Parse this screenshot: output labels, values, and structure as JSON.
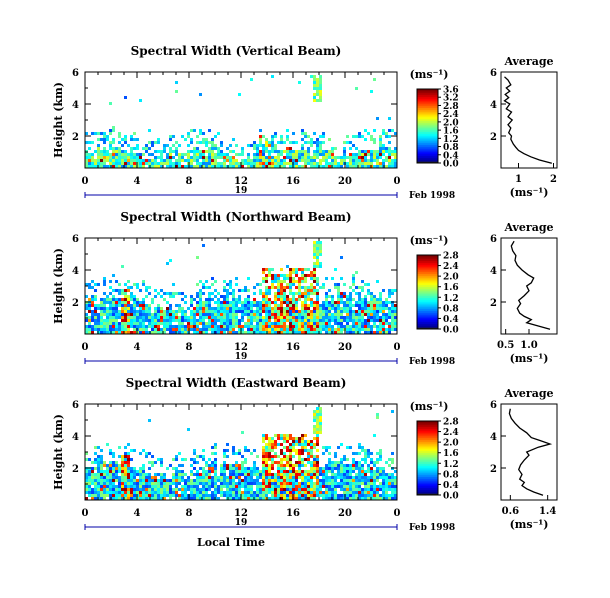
{
  "chart_data": [
    {
      "type": "heatmap",
      "title": "Spectral Width (Vertical Beam)",
      "ylabel": "Height (km)",
      "yticks": [
        "2",
        "4",
        "6"
      ],
      "ylim": [
        0,
        6
      ],
      "xticks": [
        "0",
        "4",
        "8",
        "12",
        "16",
        "20",
        "0"
      ],
      "xlim": [
        0,
        24
      ],
      "date_day": "19",
      "date_label": "Feb 1998",
      "colorbar": {
        "unit": "(ms⁻¹)",
        "ticks": [
          "0.0",
          "0.4",
          "0.8",
          "1.2",
          "1.6",
          "2.0",
          "2.4",
          "2.8",
          "3.2",
          "3.6"
        ]
      },
      "average": {
        "title": "Average",
        "xlabel": "(ms⁻¹)",
        "xticks": [
          "1",
          "2"
        ],
        "xlim": [
          0.5,
          2.1
        ],
        "yticks": [
          "2",
          "4",
          "6"
        ],
        "ylim": [
          0,
          6
        ],
        "profile": [
          [
            0.3,
            1.95
          ],
          [
            0.5,
            1.6
          ],
          [
            0.7,
            1.35
          ],
          [
            0.9,
            1.15
          ],
          [
            1.1,
            1.0
          ],
          [
            1.3,
            0.92
          ],
          [
            1.5,
            0.85
          ],
          [
            1.8,
            0.78
          ],
          [
            2.0,
            0.8
          ],
          [
            2.2,
            0.72
          ],
          [
            2.5,
            0.78
          ],
          [
            2.7,
            0.7
          ],
          [
            3.0,
            0.82
          ],
          [
            3.2,
            0.7
          ],
          [
            3.5,
            0.8
          ],
          [
            3.7,
            0.65
          ],
          [
            4.0,
            0.75
          ],
          [
            4.2,
            0.6
          ],
          [
            4.4,
            0.72
          ],
          [
            4.6,
            0.62
          ],
          [
            4.8,
            0.75
          ],
          [
            5.0,
            0.65
          ],
          [
            5.2,
            0.78
          ],
          [
            5.5,
            0.7
          ],
          [
            5.7,
            0.6
          ]
        ]
      }
    },
    {
      "type": "heatmap",
      "title": "Spectral Width (Northward Beam)",
      "ylabel": "Height (km)",
      "yticks": [
        "2",
        "4",
        "6"
      ],
      "ylim": [
        0,
        6
      ],
      "xticks": [
        "0",
        "4",
        "8",
        "12",
        "16",
        "20",
        "0"
      ],
      "xlim": [
        0,
        24
      ],
      "date_day": "19",
      "date_label": "Feb 1998",
      "colorbar": {
        "unit": "(ms⁻¹)",
        "ticks": [
          "0.0",
          "0.4",
          "0.8",
          "1.2",
          "1.6",
          "2.0",
          "2.4",
          "2.8"
        ]
      },
      "average": {
        "title": "Average",
        "xlabel": "(ms⁻¹)",
        "xticks": [
          "0.5",
          "1.0"
        ],
        "xlim": [
          0.4,
          1.6
        ],
        "yticks": [
          "2",
          "4",
          "6"
        ],
        "ylim": [
          0,
          6
        ],
        "profile": [
          [
            0.3,
            1.45
          ],
          [
            0.5,
            1.2
          ],
          [
            0.7,
            0.95
          ],
          [
            0.9,
            1.05
          ],
          [
            1.1,
            0.9
          ],
          [
            1.3,
            0.8
          ],
          [
            1.6,
            0.75
          ],
          [
            1.9,
            0.82
          ],
          [
            2.1,
            0.78
          ],
          [
            2.4,
            0.9
          ],
          [
            2.7,
            1.0
          ],
          [
            3.0,
            0.95
          ],
          [
            3.2,
            1.05
          ],
          [
            3.5,
            1.1
          ],
          [
            3.7,
            0.98
          ],
          [
            4.0,
            0.85
          ],
          [
            4.3,
            0.75
          ],
          [
            4.6,
            0.7
          ],
          [
            4.9,
            0.72
          ],
          [
            5.2,
            0.65
          ],
          [
            5.5,
            0.62
          ],
          [
            5.8,
            0.68
          ]
        ]
      }
    },
    {
      "type": "heatmap",
      "title": "Spectral Width (Eastward Beam)",
      "ylabel": "Height (km)",
      "yticks": [
        "2",
        "4",
        "6"
      ],
      "ylim": [
        0,
        6
      ],
      "xticks": [
        "0",
        "4",
        "8",
        "12",
        "16",
        "20",
        "0"
      ],
      "xlim": [
        0,
        24
      ],
      "date_day": "19",
      "date_label": "Feb 1998",
      "xlabel": "Local Time",
      "colorbar": {
        "unit": "(ms⁻¹)",
        "ticks": [
          "0.0",
          "0.4",
          "0.8",
          "1.2",
          "1.6",
          "2.0",
          "2.4",
          "2.8"
        ]
      },
      "average": {
        "title": "Average",
        "xlabel": "(ms⁻¹)",
        "xticks": [
          "0.6",
          "1.4"
        ],
        "xlim": [
          0.4,
          1.6
        ],
        "yticks": [
          "2",
          "4",
          "6"
        ],
        "ylim": [
          0,
          6
        ],
        "profile": [
          [
            0.3,
            1.3
          ],
          [
            0.5,
            1.1
          ],
          [
            0.7,
            0.95
          ],
          [
            0.9,
            0.85
          ],
          [
            1.1,
            0.9
          ],
          [
            1.3,
            0.8
          ],
          [
            1.6,
            0.85
          ],
          [
            1.9,
            0.78
          ],
          [
            2.2,
            0.82
          ],
          [
            2.5,
            0.9
          ],
          [
            2.8,
            1.0
          ],
          [
            3.0,
            0.95
          ],
          [
            3.3,
            1.2
          ],
          [
            3.5,
            1.45
          ],
          [
            3.7,
            1.25
          ],
          [
            3.9,
            1.05
          ],
          [
            4.2,
            0.95
          ],
          [
            4.5,
            0.8
          ],
          [
            4.8,
            0.7
          ],
          [
            5.1,
            0.62
          ],
          [
            5.4,
            0.58
          ],
          [
            5.7,
            0.6
          ]
        ]
      }
    }
  ]
}
